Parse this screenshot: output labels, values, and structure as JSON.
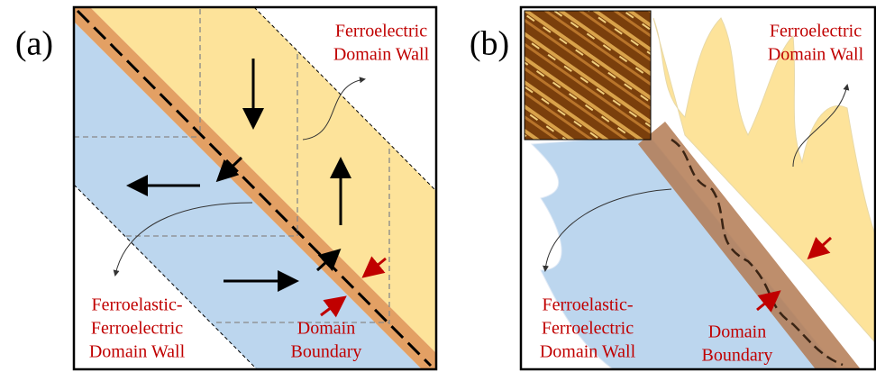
{
  "panels": [
    {
      "label": "(a)",
      "ferroelectric_wall": [
        "Ferroelectric",
        "Domain Wall"
      ],
      "ferroelastic_wall": [
        "Ferroelastic-",
        "Ferroelectric",
        "Domain Wall"
      ],
      "boundary": [
        "Domain",
        "Boundary"
      ]
    },
    {
      "label": "(b)",
      "ferroelectric_wall": [
        "Ferroelectric",
        "Domain Wall"
      ],
      "ferroelastic_wall": [
        "Ferroelastic-",
        "Ferroelectric",
        "Domain Wall"
      ],
      "boundary": [
        "Domain",
        "Boundary"
      ]
    }
  ]
}
